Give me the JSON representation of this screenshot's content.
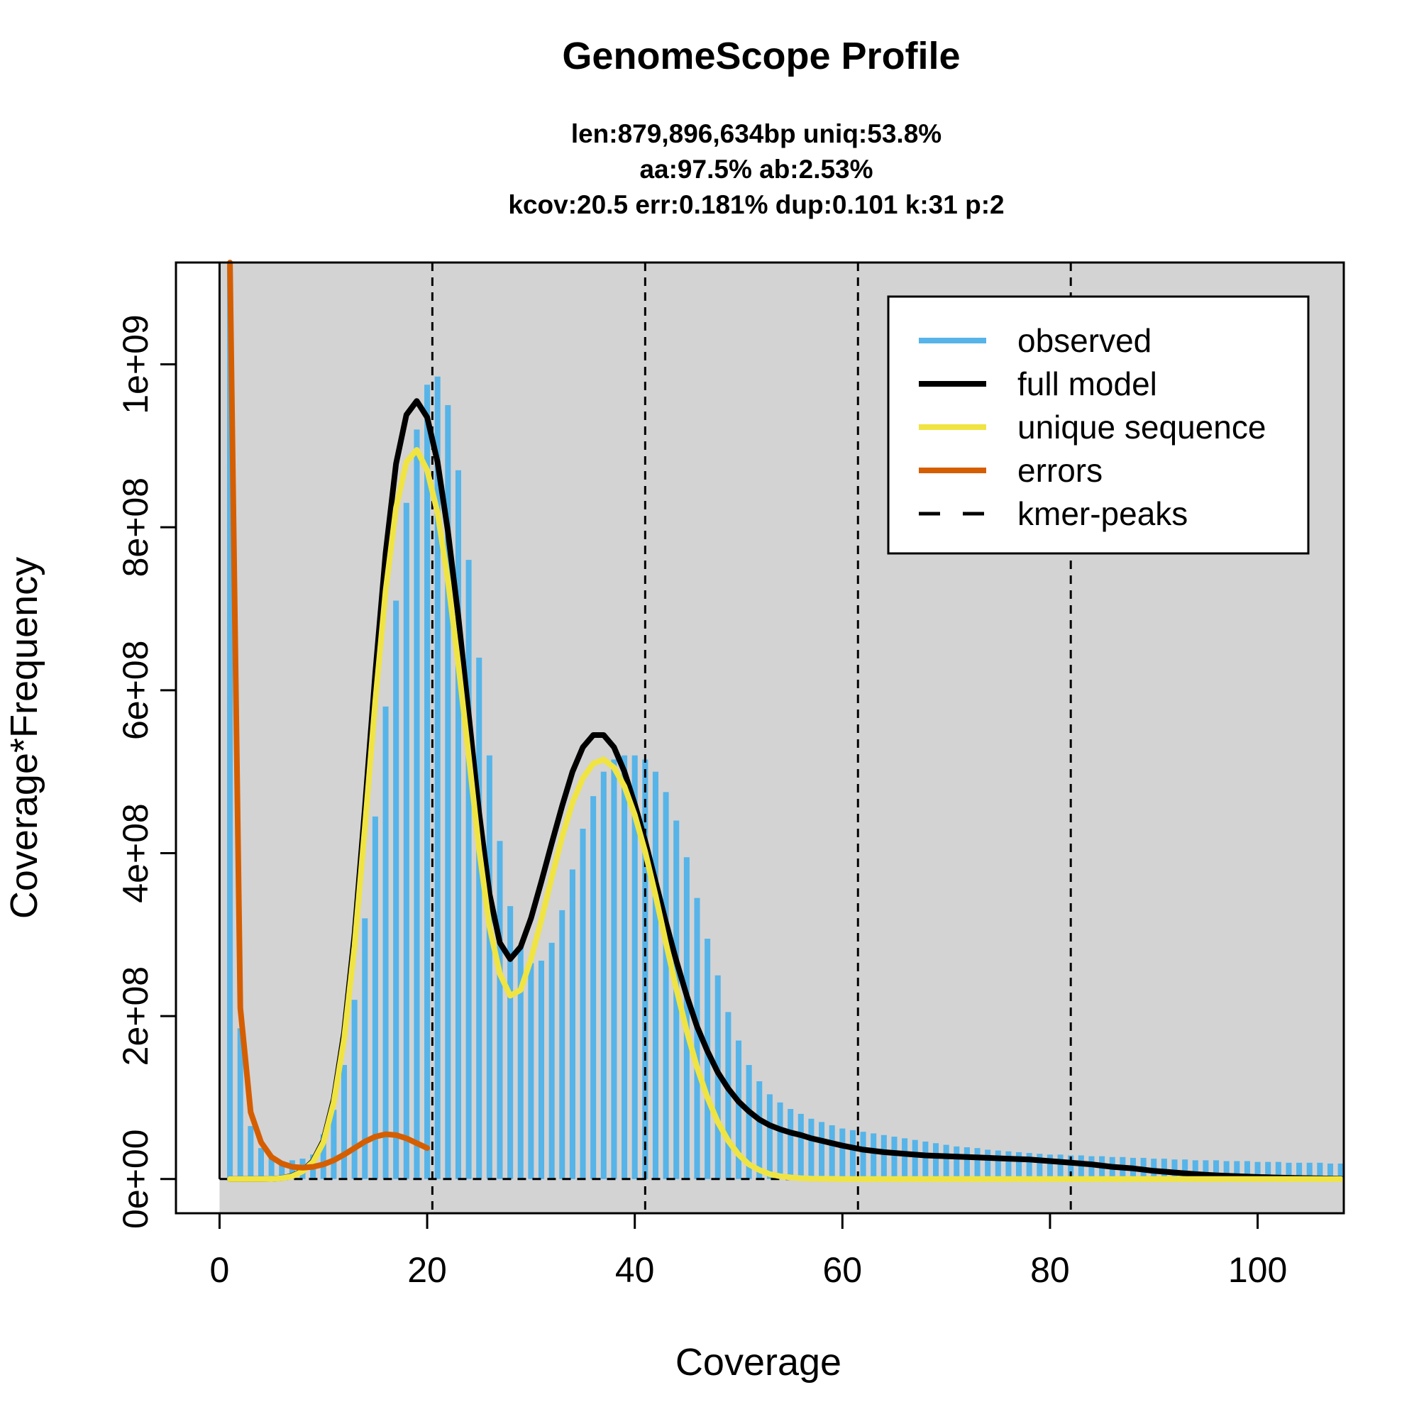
{
  "chart_data": {
    "type": "bar",
    "title": "GenomeScope Profile",
    "subtitle_lines": [
      "len:879,896,634bp uniq:53.8%",
      "aa:97.5% ab:2.53%",
      "kcov:20.5 err:0.181%  dup:0.101  k:31 p:2"
    ],
    "xlabel": "Coverage",
    "ylabel": "Coverage*Frequency",
    "xlim": [
      -4.2,
      108.3
    ],
    "ylim": [
      -42000000,
      1125000000
    ],
    "x_ticks": [
      0,
      20,
      40,
      60,
      80,
      100
    ],
    "x_tick_labels": [
      "0",
      "20",
      "40",
      "60",
      "80",
      "100"
    ],
    "y_ticks": [
      0,
      200000000,
      400000000,
      600000000,
      800000000,
      1000000000
    ],
    "y_tick_labels": [
      "0e+00",
      "2e+08",
      "4e+08",
      "6e+08",
      "8e+08",
      "1e+09"
    ],
    "grid": false,
    "plot_background": "#d3d3d3",
    "colors": {
      "observed": "#56b4e9",
      "full_model": "#000000",
      "unique_sequence": "#f0e442",
      "errors": "#d55e00",
      "kmer_peaks": "#000000"
    },
    "kmer_peaks": [
      20.5,
      41.0,
      61.5,
      82.0
    ],
    "legend": {
      "placement": "top-right",
      "entries": [
        {
          "label": "observed",
          "color": "#56b4e9",
          "style": "solid"
        },
        {
          "label": "full model",
          "color": "#000000",
          "style": "solid"
        },
        {
          "label": "unique sequence",
          "color": "#f0e442",
          "style": "solid"
        },
        {
          "label": "errors",
          "color": "#d55e00",
          "style": "solid"
        },
        {
          "label": "kmer-peaks",
          "color": "#000000",
          "style": "dashed"
        }
      ]
    },
    "observed": {
      "x": [
        1,
        2,
        3,
        4,
        5,
        6,
        7,
        8,
        9,
        10,
        11,
        12,
        13,
        14,
        15,
        16,
        17,
        18,
        19,
        20,
        21,
        22,
        23,
        24,
        25,
        26,
        27,
        28,
        29,
        30,
        31,
        32,
        33,
        34,
        35,
        36,
        37,
        38,
        39,
        40,
        41,
        42,
        43,
        44,
        45,
        46,
        47,
        48,
        49,
        50,
        51,
        52,
        53,
        54,
        55,
        56,
        57,
        58,
        59,
        60,
        61,
        62,
        63,
        64,
        65,
        66,
        67,
        68,
        69,
        70,
        71,
        72,
        73,
        74,
        75,
        76,
        77,
        78,
        79,
        80,
        81,
        82,
        83,
        84,
        85,
        86,
        87,
        88,
        89,
        90,
        91,
        92,
        93,
        94,
        95,
        96,
        97,
        98,
        99,
        100,
        101,
        102,
        103,
        104,
        105,
        106,
        107,
        108
      ],
      "y": [
        1120000000,
        185000000,
        65000000,
        38000000,
        26000000,
        22000000,
        23000000,
        25000000,
        30000000,
        55000000,
        85000000,
        140000000,
        220000000,
        320000000,
        445000000,
        580000000,
        710000000,
        830000000,
        920000000,
        975000000,
        985000000,
        950000000,
        870000000,
        760000000,
        640000000,
        520000000,
        415000000,
        335000000,
        285000000,
        265000000,
        268000000,
        290000000,
        330000000,
        380000000,
        430000000,
        470000000,
        500000000,
        515000000,
        520000000,
        520000000,
        515000000,
        500000000,
        475000000,
        440000000,
        395000000,
        345000000,
        295000000,
        250000000,
        205000000,
        170000000,
        140000000,
        120000000,
        104000000,
        94000000,
        86000000,
        80000000,
        74000000,
        70000000,
        66000000,
        62000000,
        60000000,
        58000000,
        56000000,
        54000000,
        52000000,
        50000000,
        48000000,
        46000000,
        44000000,
        42000000,
        40000000,
        39000000,
        38000000,
        36000000,
        35000000,
        34000000,
        33000000,
        32000000,
        31000000,
        30000000,
        30000000,
        29000000,
        29000000,
        28000000,
        28000000,
        27000000,
        27000000,
        26000000,
        26000000,
        25000000,
        25000000,
        24000000,
        24000000,
        23000000,
        23000000,
        23000000,
        22000000,
        22000000,
        22000000,
        21000000,
        21000000,
        21000000,
        20000000,
        20000000,
        20000000,
        20000000,
        19000000,
        19000000
      ]
    },
    "full_model": {
      "x": [
        1,
        2,
        3,
        4,
        5,
        6,
        7,
        8,
        9,
        10,
        11,
        12,
        13,
        14,
        15,
        16,
        17,
        18,
        19,
        20,
        21,
        22,
        23,
        24,
        25,
        26,
        27,
        28,
        29,
        30,
        31,
        32,
        33,
        34,
        35,
        36,
        37,
        38,
        39,
        40,
        41,
        42,
        43,
        44,
        45,
        46,
        47,
        48,
        49,
        50,
        51,
        52,
        53,
        54,
        55,
        56,
        57,
        58,
        59,
        60,
        62,
        64,
        66,
        68,
        70,
        72,
        74,
        76,
        78,
        80,
        82,
        84,
        86,
        88,
        90,
        92,
        94,
        96,
        98,
        100,
        102,
        104,
        106,
        108
      ],
      "y": [
        0,
        0,
        0,
        0,
        200000,
        1000000,
        4000000,
        10000000,
        22000000,
        47000000,
        98000000,
        180000000,
        300000000,
        455000000,
        620000000,
        768000000,
        878000000,
        938000000,
        955000000,
        935000000,
        880000000,
        795000000,
        690000000,
        570000000,
        450000000,
        350000000,
        290000000,
        270000000,
        285000000,
        320000000,
        365000000,
        412000000,
        458000000,
        500000000,
        530000000,
        545000000,
        545000000,
        530000000,
        500000000,
        460000000,
        415000000,
        365000000,
        315000000,
        268000000,
        225000000,
        187000000,
        157000000,
        131000000,
        111000000,
        95000000,
        83000000,
        73000000,
        66000000,
        61000000,
        57000000,
        54000000,
        50000000,
        47000000,
        44000000,
        41000000,
        36000000,
        33000000,
        31000000,
        29000000,
        28000000,
        27000000,
        26000000,
        25000000,
        24000000,
        22000000,
        20000000,
        18000000,
        15000000,
        13000000,
        10000000,
        8000000,
        6000000,
        4500000,
        3500000,
        2500000,
        1800000,
        1200000,
        800000,
        500000
      ]
    },
    "unique_sequence": {
      "x": [
        1,
        2,
        3,
        4,
        5,
        6,
        7,
        8,
        9,
        10,
        11,
        12,
        13,
        14,
        15,
        16,
        17,
        18,
        19,
        20,
        21,
        22,
        23,
        24,
        25,
        26,
        27,
        28,
        29,
        30,
        31,
        32,
        33,
        34,
        35,
        36,
        37,
        38,
        39,
        40,
        41,
        42,
        43,
        44,
        45,
        46,
        47,
        48,
        49,
        50,
        51,
        52,
        53,
        54,
        55,
        56,
        57,
        58,
        59,
        60,
        62,
        64,
        66,
        68,
        70,
        75,
        80,
        85,
        90,
        95,
        100,
        105,
        108
      ],
      "y": [
        0,
        0,
        0,
        0,
        200000,
        900000,
        3500000,
        9500000,
        21000000,
        45000000,
        94000000,
        172000000,
        286000000,
        432000000,
        586000000,
        722000000,
        824000000,
        880000000,
        895000000,
        870000000,
        818000000,
        735000000,
        632000000,
        520000000,
        405000000,
        310000000,
        252000000,
        225000000,
        232000000,
        270000000,
        318000000,
        370000000,
        420000000,
        462000000,
        492000000,
        510000000,
        515000000,
        505000000,
        482000000,
        447000000,
        402000000,
        348000000,
        290000000,
        234000000,
        182000000,
        137000000,
        100000000,
        70000000,
        47000000,
        30000000,
        18000000,
        11000000,
        6000000,
        3500000,
        2000000,
        1000000,
        500000,
        300000,
        200000,
        100000,
        0,
        0,
        0,
        0,
        0,
        0,
        0,
        0,
        0,
        0,
        0,
        0,
        0
      ]
    },
    "errors": {
      "x": [
        1,
        2,
        3,
        4,
        5,
        6,
        7,
        8,
        9,
        10,
        11,
        12,
        13,
        14,
        15,
        16,
        17,
        18,
        19,
        20
      ],
      "y": [
        1125000000,
        210000000,
        82000000,
        45000000,
        27000000,
        19000000,
        15000000,
        14000000,
        15000000,
        18000000,
        23000000,
        30000000,
        38000000,
        46000000,
        52000000,
        55000000,
        54000000,
        50000000,
        44000000,
        38000000
      ]
    }
  }
}
